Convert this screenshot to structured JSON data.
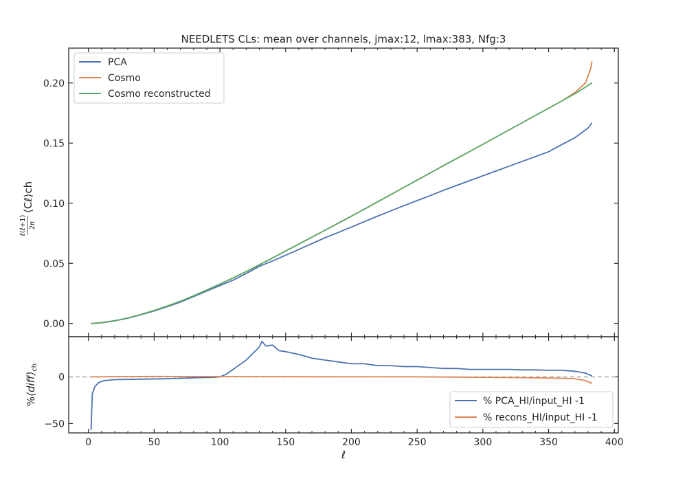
{
  "chart_data": [
    {
      "type": "line",
      "title": "NEEDLETS CLs: mean over channels, jmax:12, lmax:383, Nfg:3",
      "xlabel": "",
      "ylabel_main": "ℓ(ℓ+1)",
      "ylabel_frac": "2π",
      "ylabel_tail": "⟨Cℓ⟩ch",
      "xlim": [
        -15,
        403
      ],
      "ylim": [
        -0.011,
        0.229
      ],
      "grid": false,
      "legend_position": "top-left",
      "xticks": [
        0,
        50,
        100,
        150,
        200,
        250,
        300,
        350,
        400
      ],
      "yticks": [
        0.0,
        0.05,
        0.1,
        0.15,
        0.2
      ],
      "ytick_labels": [
        "0.00",
        "0.05",
        "0.10",
        "0.15",
        "0.20"
      ],
      "series": [
        {
          "name": "PCA",
          "color": "#4c72b0",
          "points": [
            [
              2,
              0.0
            ],
            [
              10,
              0.0006
            ],
            [
              20,
              0.0022
            ],
            [
              30,
              0.0044
            ],
            [
              40,
              0.0073
            ],
            [
              50,
              0.0104
            ],
            [
              60,
              0.014
            ],
            [
              70,
              0.0178
            ],
            [
              80,
              0.0223
            ],
            [
              90,
              0.027
            ],
            [
              100,
              0.0315
            ],
            [
              110,
              0.036
            ],
            [
              120,
              0.0415
            ],
            [
              130,
              0.0475
            ],
            [
              140,
              0.052
            ],
            [
              150,
              0.0568
            ],
            [
              160,
              0.0615
            ],
            [
              170,
              0.0665
            ],
            [
              180,
              0.0713
            ],
            [
              190,
              0.0757
            ],
            [
              200,
              0.0802
            ],
            [
              210,
              0.0848
            ],
            [
              220,
              0.0893
            ],
            [
              230,
              0.0937
            ],
            [
              240,
              0.098
            ],
            [
              250,
              0.1022
            ],
            [
              260,
              0.1063
            ],
            [
              270,
              0.1107
            ],
            [
              280,
              0.1148
            ],
            [
              290,
              0.1188
            ],
            [
              300,
              0.1228
            ],
            [
              310,
              0.1268
            ],
            [
              320,
              0.1308
            ],
            [
              330,
              0.1348
            ],
            [
              340,
              0.1388
            ],
            [
              350,
              0.1428
            ],
            [
              360,
              0.1488
            ],
            [
              370,
              0.1545
            ],
            [
              380,
              0.1625
            ],
            [
              383,
              0.167
            ]
          ]
        },
        {
          "name": "Cosmo",
          "color": "#dd8452",
          "points": [
            [
              2,
              0.0
            ],
            [
              10,
              0.0006
            ],
            [
              20,
              0.0023
            ],
            [
              30,
              0.0046
            ],
            [
              40,
              0.0075
            ],
            [
              50,
              0.0108
            ],
            [
              60,
              0.0145
            ],
            [
              70,
              0.0185
            ],
            [
              80,
              0.023
            ],
            [
              90,
              0.0278
            ],
            [
              100,
              0.0327
            ],
            [
              110,
              0.0378
            ],
            [
              120,
              0.0432
            ],
            [
              130,
              0.0488
            ],
            [
              140,
              0.0545
            ],
            [
              150,
              0.0603
            ],
            [
              160,
              0.066
            ],
            [
              170,
              0.0718
            ],
            [
              180,
              0.0776
            ],
            [
              190,
              0.0834
            ],
            [
              200,
              0.0892
            ],
            [
              210,
              0.0952
            ],
            [
              220,
              0.1012
            ],
            [
              230,
              0.1072
            ],
            [
              240,
              0.1132
            ],
            [
              250,
              0.1192
            ],
            [
              260,
              0.1252
            ],
            [
              270,
              0.1312
            ],
            [
              280,
              0.1372
            ],
            [
              290,
              0.143
            ],
            [
              300,
              0.149
            ],
            [
              310,
              0.155
            ],
            [
              320,
              0.161
            ],
            [
              330,
              0.167
            ],
            [
              340,
              0.173
            ],
            [
              350,
              0.179
            ],
            [
              360,
              0.185
            ],
            [
              370,
              0.192
            ],
            [
              378,
              0.2
            ],
            [
              382,
              0.212
            ],
            [
              383,
              0.218
            ]
          ]
        },
        {
          "name": "Cosmo reconstructed",
          "color": "#55a868",
          "points": [
            [
              2,
              0.0
            ],
            [
              10,
              0.0006
            ],
            [
              20,
              0.0023
            ],
            [
              30,
              0.0046
            ],
            [
              40,
              0.0075
            ],
            [
              50,
              0.0108
            ],
            [
              60,
              0.0145
            ],
            [
              70,
              0.0185
            ],
            [
              80,
              0.023
            ],
            [
              90,
              0.0278
            ],
            [
              100,
              0.0327
            ],
            [
              110,
              0.0378
            ],
            [
              120,
              0.0432
            ],
            [
              130,
              0.0488
            ],
            [
              140,
              0.0545
            ],
            [
              150,
              0.0603
            ],
            [
              160,
              0.066
            ],
            [
              170,
              0.0718
            ],
            [
              180,
              0.0776
            ],
            [
              190,
              0.0834
            ],
            [
              200,
              0.0892
            ],
            [
              210,
              0.0952
            ],
            [
              220,
              0.1012
            ],
            [
              230,
              0.1072
            ],
            [
              240,
              0.1132
            ],
            [
              250,
              0.1192
            ],
            [
              260,
              0.1252
            ],
            [
              270,
              0.1312
            ],
            [
              280,
              0.1372
            ],
            [
              290,
              0.143
            ],
            [
              300,
              0.149
            ],
            [
              310,
              0.155
            ],
            [
              320,
              0.161
            ],
            [
              330,
              0.167
            ],
            [
              340,
              0.173
            ],
            [
              350,
              0.179
            ],
            [
              360,
              0.185
            ],
            [
              370,
              0.191
            ],
            [
              380,
              0.198
            ],
            [
              383,
              0.2
            ]
          ]
        }
      ]
    },
    {
      "type": "line",
      "xlabel": "ℓ",
      "ylabel_prefix": "%",
      "ylabel_mid": "⟨diff⟩",
      "ylabel_sub": "ch",
      "xlim": [
        -15,
        403
      ],
      "ylim": [
        -60,
        43
      ],
      "grid": false,
      "legend_position": "bottom-right",
      "reference_line": 0,
      "xticks": [
        0,
        50,
        100,
        150,
        200,
        250,
        300,
        350,
        400
      ],
      "xtick_labels": [
        "0",
        "50",
        "100",
        "150",
        "200",
        "250",
        "300",
        "350",
        "400"
      ],
      "yticks": [
        -50,
        0
      ],
      "ytick_labels": [
        "−50",
        "0"
      ],
      "series": [
        {
          "name": "% PCA_HI/input_HI -1",
          "color": "#4c72b0",
          "points": [
            [
              2,
              -57
            ],
            [
              3,
              -18
            ],
            [
              5,
              -10
            ],
            [
              8,
              -6
            ],
            [
              12,
              -4
            ],
            [
              20,
              -3
            ],
            [
              40,
              -2.5
            ],
            [
              60,
              -2
            ],
            [
              80,
              -1
            ],
            [
              95,
              -0.5
            ],
            [
              100,
              0
            ],
            [
              105,
              3
            ],
            [
              110,
              8
            ],
            [
              115,
              13
            ],
            [
              120,
              18
            ],
            [
              125,
              25
            ],
            [
              130,
              32
            ],
            [
              132,
              38
            ],
            [
              135,
              33
            ],
            [
              140,
              34
            ],
            [
              145,
              28
            ],
            [
              150,
              27
            ],
            [
              160,
              24
            ],
            [
              170,
              20
            ],
            [
              180,
              18
            ],
            [
              190,
              16
            ],
            [
              200,
              14
            ],
            [
              210,
              14
            ],
            [
              220,
              12
            ],
            [
              230,
              12
            ],
            [
              240,
              11
            ],
            [
              250,
              11
            ],
            [
              260,
              10
            ],
            [
              270,
              9
            ],
            [
              280,
              9
            ],
            [
              290,
              8
            ],
            [
              300,
              8
            ],
            [
              310,
              8
            ],
            [
              320,
              8
            ],
            [
              330,
              7.5
            ],
            [
              340,
              7.5
            ],
            [
              350,
              7
            ],
            [
              360,
              7
            ],
            [
              370,
              6
            ],
            [
              378,
              4
            ],
            [
              383,
              1
            ]
          ]
        },
        {
          "name": "% recons_HI/input_HI -1",
          "color": "#dd8452",
          "points": [
            [
              2,
              0
            ],
            [
              50,
              0.5
            ],
            [
              100,
              0.3
            ],
            [
              150,
              0.2
            ],
            [
              200,
              0
            ],
            [
              250,
              0
            ],
            [
              300,
              -0.5
            ],
            [
              340,
              -1
            ],
            [
              360,
              -1.5
            ],
            [
              370,
              -2
            ],
            [
              378,
              -4
            ],
            [
              383,
              -7
            ]
          ]
        }
      ]
    }
  ]
}
